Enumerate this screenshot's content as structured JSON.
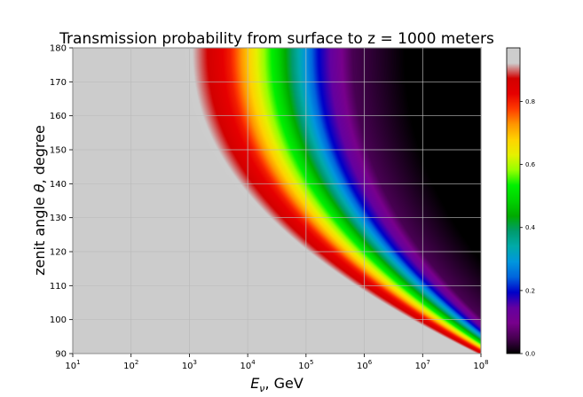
{
  "chart_data": {
    "type": "heatmap",
    "title": "Transmission probability from surface to z = 1000 meters",
    "xlabel_main": "E",
    "xlabel_sub": "ν",
    "xlabel_rest": ", GeV",
    "ylabel_main": "zenit angle ",
    "ylabel_theta": "θ",
    "ylabel_rest": ", degree",
    "x_scale": "log",
    "xlim": [
      10,
      100000000
    ],
    "ylim": [
      90,
      180
    ],
    "x_ticks": [
      {
        "value": 10,
        "base": "10",
        "exp": "1"
      },
      {
        "value": 100,
        "base": "10",
        "exp": "2"
      },
      {
        "value": 1000,
        "base": "10",
        "exp": "3"
      },
      {
        "value": 10000,
        "base": "10",
        "exp": "4"
      },
      {
        "value": 100000,
        "base": "10",
        "exp": "5"
      },
      {
        "value": 1000000,
        "base": "10",
        "exp": "6"
      },
      {
        "value": 10000000,
        "base": "10",
        "exp": "7"
      },
      {
        "value": 100000000,
        "base": "10",
        "exp": "8"
      }
    ],
    "y_ticks": [
      "90",
      "100",
      "110",
      "120",
      "130",
      "140",
      "150",
      "160",
      "170",
      "180"
    ],
    "colorbar": {
      "range": [
        0,
        0.97
      ],
      "ticks": [
        "0.0",
        "0.2",
        "0.4",
        "0.6",
        "0.8"
      ],
      "colormap": "nipy_spectral"
    },
    "grid": true,
    "transmission_contours": [
      {
        "level": 0.95,
        "log10_energy_at_180": 2.9,
        "log10_energy_at_90": 7.9
      },
      {
        "level": 0.8,
        "log10_energy_at_180": 3.7,
        "log10_energy_at_90": 8.1
      },
      {
        "level": 0.5,
        "log10_energy_at_180": 4.5,
        "log10_energy_at_90": 8.3
      },
      {
        "level": 0.2,
        "log10_energy_at_180": 5.2,
        "log10_energy_at_90": 8.5
      },
      {
        "level": 0.05,
        "log10_energy_at_180": 5.8,
        "log10_energy_at_90": 8.7
      }
    ]
  }
}
